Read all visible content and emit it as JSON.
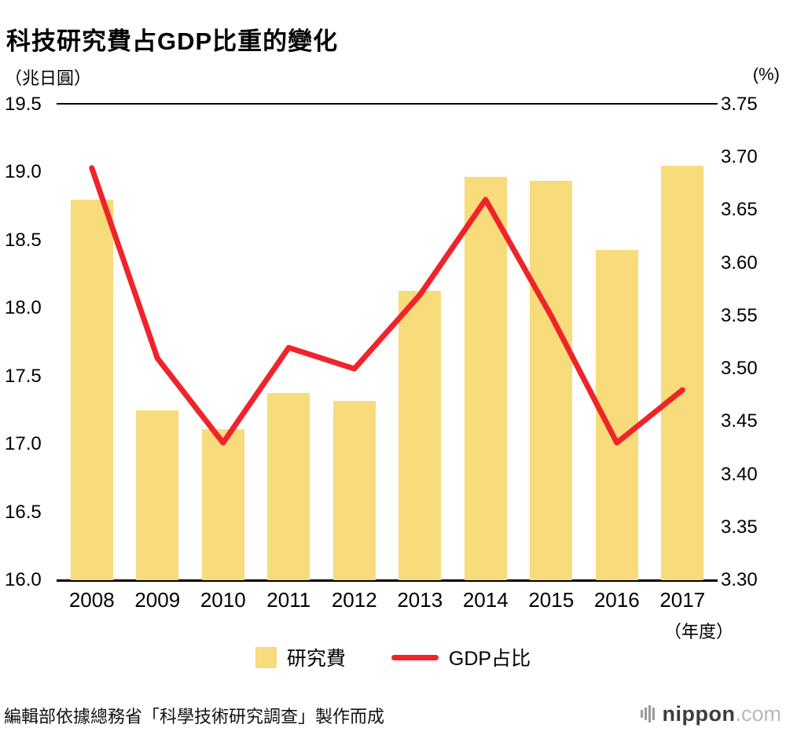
{
  "title": "科技研究費占GDP比重的變化",
  "left_axis_unit": "（兆日圓）",
  "right_axis_unit": "(%)",
  "x_axis_unit": "（年度）",
  "legend": {
    "bar_label": "研究費",
    "line_label": "GDP占比"
  },
  "footer": {
    "source": "編輯部依據總務省「科學技術研究調查」製作而成",
    "logo_name": "nippon",
    "logo_tld": ".com"
  },
  "colors": {
    "bar": "#F8DB7B",
    "line": "#F0232B",
    "axis": "#000000",
    "logo_gray": "#3D3D3F",
    "logo_light": "#B9B9B9"
  },
  "chart_data": {
    "type": "bar",
    "subtype": "bar+line dual axis",
    "categories": [
      "2008",
      "2009",
      "2010",
      "2011",
      "2012",
      "2013",
      "2014",
      "2015",
      "2016",
      "2017"
    ],
    "series": [
      {
        "name": "研究費",
        "type": "bar",
        "axis": "left",
        "unit": "兆日圓",
        "values": [
          18.8,
          17.25,
          17.11,
          17.38,
          17.32,
          18.13,
          18.97,
          18.94,
          18.43,
          19.05
        ]
      },
      {
        "name": "GDP占比",
        "type": "line",
        "axis": "right",
        "unit": "%",
        "values": [
          3.69,
          3.51,
          3.43,
          3.52,
          3.5,
          3.57,
          3.66,
          3.55,
          3.43,
          3.48
        ]
      }
    ],
    "left_axis": {
      "min": 16.0,
      "max": 19.5,
      "tick_step": 0.5,
      "ticks": [
        "19.5",
        "19.0",
        "18.5",
        "18.0",
        "17.5",
        "17.0",
        "16.5",
        "16.0"
      ]
    },
    "right_axis": {
      "min": 3.3,
      "max": 3.75,
      "tick_step": 0.05,
      "ticks": [
        "3.75",
        "3.70",
        "3.65",
        "3.60",
        "3.55",
        "3.50",
        "3.45",
        "3.40",
        "3.35",
        "3.30"
      ]
    },
    "grid": "top and bottom rules only",
    "legend_position": "bottom center"
  }
}
